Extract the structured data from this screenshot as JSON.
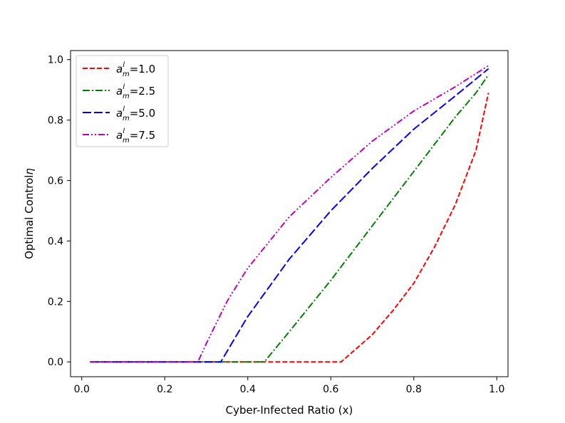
{
  "chart_data": {
    "type": "line",
    "title": "",
    "xlabel": "Cyber-Infected Ratio (x)",
    "ylabel_text": "Optimal Control",
    "ylabel_symbol": "η",
    "xlim": [
      -0.027,
      1.027
    ],
    "ylim": [
      -0.049,
      1.03
    ],
    "xticks": [
      0.0,
      0.2,
      0.4,
      0.6,
      0.8,
      1.0
    ],
    "xtick_labels": [
      "0.0",
      "0.2",
      "0.4",
      "0.6",
      "0.8",
      "1.0"
    ],
    "yticks": [
      0.0,
      0.2,
      0.4,
      0.6,
      0.8,
      1.0
    ],
    "ytick_labels": [
      "0.0",
      "0.2",
      "0.4",
      "0.6",
      "0.8",
      "1.0"
    ],
    "grid": false,
    "legend_position": "top-left",
    "series": [
      {
        "name": "a_m^l=1.0",
        "legend_base": "a",
        "legend_sup": "l",
        "legend_sub": "m",
        "legend_value": "=1.0",
        "color": "#ff0000",
        "dash": "dashed",
        "x": [
          0.02,
          0.1,
          0.2,
          0.3,
          0.4,
          0.5,
          0.6,
          0.625,
          0.65,
          0.7,
          0.75,
          0.8,
          0.85,
          0.9,
          0.95,
          0.98
        ],
        "y": [
          0.0,
          0.0,
          0.0,
          0.0,
          0.0,
          0.0,
          0.0,
          0.0,
          0.03,
          0.09,
          0.17,
          0.26,
          0.38,
          0.52,
          0.7,
          0.89
        ]
      },
      {
        "name": "a_m^l=2.5",
        "legend_base": "a",
        "legend_sup": "l",
        "legend_sub": "m",
        "legend_value": "=2.5",
        "color": "#008000",
        "dash": "dashdot",
        "x": [
          0.02,
          0.1,
          0.2,
          0.3,
          0.4,
          0.44,
          0.5,
          0.6,
          0.7,
          0.8,
          0.9,
          0.95,
          0.98
        ],
        "y": [
          0.0,
          0.0,
          0.0,
          0.0,
          0.0,
          0.0,
          0.1,
          0.27,
          0.45,
          0.63,
          0.81,
          0.89,
          0.95
        ]
      },
      {
        "name": "a_m^l=5.0",
        "legend_base": "a",
        "legend_sup": "l",
        "legend_sub": "m",
        "legend_value": "=5.0",
        "color": "#0000ff",
        "dash": "longdash",
        "x": [
          0.02,
          0.1,
          0.2,
          0.3,
          0.335,
          0.4,
          0.5,
          0.6,
          0.7,
          0.8,
          0.9,
          0.98
        ],
        "y": [
          0.0,
          0.0,
          0.0,
          0.0,
          0.0,
          0.15,
          0.34,
          0.5,
          0.64,
          0.77,
          0.88,
          0.97
        ]
      },
      {
        "name": "a_m^l=7.5",
        "legend_base": "a",
        "legend_sup": "l",
        "legend_sub": "m",
        "legend_value": "=7.5",
        "color": "#bf00bf",
        "dash": "dashdotdot",
        "x": [
          0.02,
          0.1,
          0.2,
          0.28,
          0.3,
          0.35,
          0.4,
          0.5,
          0.6,
          0.7,
          0.8,
          0.9,
          0.98
        ],
        "y": [
          0.0,
          0.0,
          0.0,
          0.0,
          0.06,
          0.2,
          0.31,
          0.48,
          0.61,
          0.73,
          0.83,
          0.91,
          0.98
        ]
      }
    ]
  }
}
